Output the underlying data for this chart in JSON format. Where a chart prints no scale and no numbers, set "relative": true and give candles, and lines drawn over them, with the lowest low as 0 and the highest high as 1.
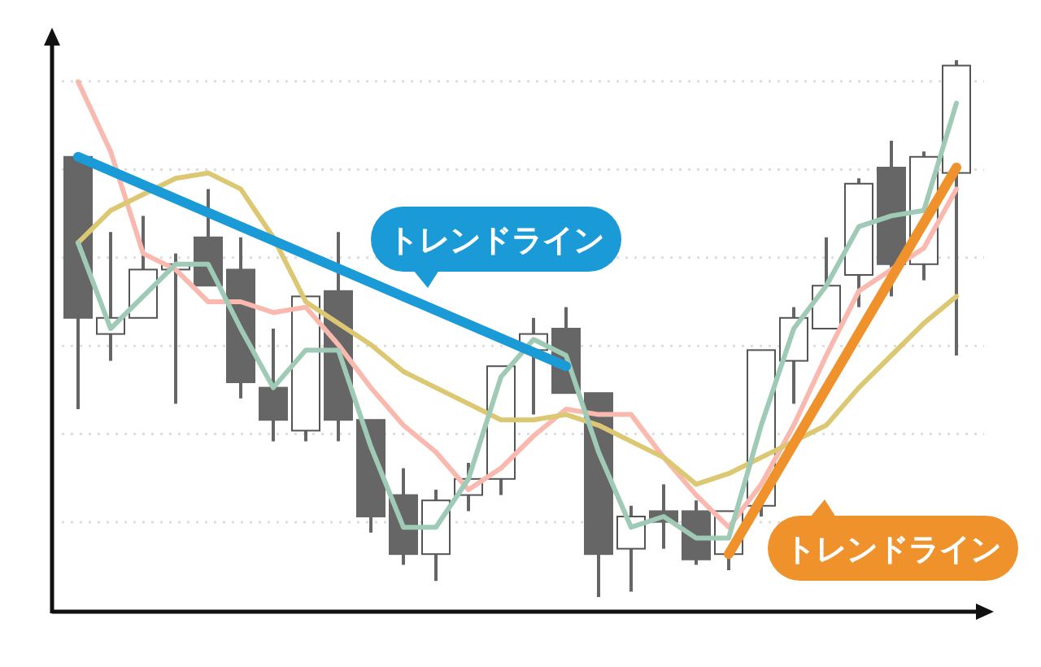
{
  "chart_data": {
    "type": "candlestick",
    "relative": true,
    "grid": true,
    "categories": [
      null,
      null,
      null,
      null,
      null,
      null,
      null,
      null,
      null,
      null,
      null,
      null,
      null,
      null,
      null,
      null,
      null,
      null,
      null,
      null,
      null,
      null,
      null,
      null,
      null,
      null,
      null,
      null
    ],
    "ohlc": [
      [
        0.82,
        0.82,
        0.35,
        0.52
      ],
      [
        0.49,
        0.68,
        0.44,
        0.52
      ],
      [
        0.52,
        0.71,
        0.52,
        0.61
      ],
      [
        0.61,
        0.64,
        0.36,
        0.62
      ],
      [
        0.67,
        0.76,
        0.58,
        0.58
      ],
      [
        0.61,
        0.67,
        0.37,
        0.4
      ],
      [
        0.39,
        0.5,
        0.29,
        0.33
      ],
      [
        0.31,
        0.56,
        0.29,
        0.56
      ],
      [
        0.57,
        0.68,
        0.29,
        0.33
      ],
      [
        0.33,
        0.33,
        0.12,
        0.15
      ],
      [
        0.19,
        0.24,
        0.06,
        0.08
      ],
      [
        0.08,
        0.2,
        0.03,
        0.18
      ],
      [
        0.19,
        0.25,
        0.16,
        0.22
      ],
      [
        0.22,
        0.43,
        0.19,
        0.43
      ],
      [
        0.46,
        0.52,
        0.34,
        0.49
      ],
      [
        0.5,
        0.54,
        0.38,
        0.38
      ],
      [
        0.38,
        0.38,
        0,
        0.08
      ],
      [
        0.09,
        0.17,
        0.01,
        0.15
      ],
      [
        0.16,
        0.21,
        0.09,
        0.14
      ],
      [
        0.16,
        0.18,
        0.06,
        0.07
      ],
      [
        0.08,
        0.16,
        0.05,
        0.16
      ],
      [
        0.17,
        0.46,
        0.15,
        0.46
      ],
      [
        0.44,
        0.54,
        0.36,
        0.52
      ],
      [
        0.5,
        0.67,
        0.5,
        0.58
      ],
      [
        0.6,
        0.78,
        0.54,
        0.77
      ],
      [
        0.8,
        0.85,
        0.56,
        0.62
      ],
      [
        0.62,
        0.83,
        0.59,
        0.82
      ],
      [
        0.79,
        1,
        0.45,
        0.99
      ]
    ],
    "series": [
      {
        "type": "line",
        "color": "#f9b9ae",
        "values": [
          0.96,
          0.83,
          0.64,
          0.61,
          0.55,
          0.55,
          0.53,
          0.54,
          0.47,
          0.39,
          0.32,
          0.27,
          0.2,
          0.24,
          0.3,
          0.35,
          0.34,
          0.34,
          0.26,
          0.19,
          0.13,
          0.21,
          0.32,
          0.45,
          0.57,
          0.61,
          0.65,
          0.76
        ]
      },
      {
        "type": "line",
        "color": "#dcc872",
        "values": [
          0.66,
          0.72,
          0.75,
          0.78,
          0.79,
          0.76,
          0.67,
          0.55,
          0.51,
          0.47,
          0.42,
          0.39,
          0.36,
          0.33,
          0.33,
          0.34,
          0.32,
          0.29,
          0.26,
          0.21,
          0.23,
          0.26,
          0.29,
          0.32,
          0.39,
          0.45,
          0.51,
          0.56
        ]
      },
      {
        "type": "line",
        "color": "#9ecab6",
        "values": [
          0.66,
          0.5,
          0.56,
          0.62,
          0.62,
          0.5,
          0.39,
          0.46,
          0.46,
          0.28,
          0.13,
          0.13,
          0.22,
          0.41,
          0.48,
          0.45,
          0.27,
          0.13,
          0.15,
          0.11,
          0.11,
          0.32,
          0.5,
          0.58,
          0.69,
          0.71,
          0.72,
          0.92
        ]
      },
      {
        "type": "line",
        "color": "#1a9ad6",
        "values": [
          0.82,
          null,
          null,
          null,
          null,
          null,
          null,
          null,
          null,
          null,
          null,
          null,
          null,
          null,
          null,
          0.43,
          null,
          null,
          null,
          null,
          null,
          null,
          null,
          null,
          null,
          null,
          null,
          null
        ]
      },
      {
        "type": "line",
        "color": "#f0922c",
        "values": [
          null,
          null,
          null,
          null,
          null,
          null,
          null,
          null,
          null,
          null,
          null,
          null,
          null,
          null,
          null,
          null,
          null,
          null,
          null,
          null,
          0.08,
          null,
          null,
          null,
          null,
          null,
          null,
          0.8
        ]
      }
    ],
    "annotations": [
      "トレンドライン",
      "トレンドライン"
    ]
  }
}
